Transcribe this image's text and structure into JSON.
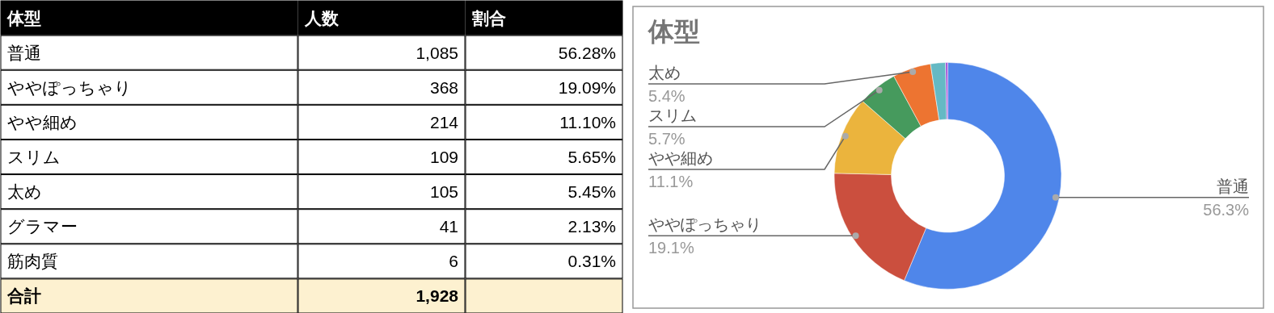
{
  "chart_data": [
    {
      "type": "other",
      "annotations": [
        "体型",
        "人数",
        "割合",
        "普通",
        "1,085",
        "56.28%",
        "ややぽっちゃり",
        "368",
        "19.09%",
        "やや細め",
        "214",
        "11.10%",
        "スリム",
        "109",
        "5.65%",
        "太め",
        "105",
        "5.45%",
        "グラマー",
        "41",
        "2.13%",
        "筋肉質",
        "6",
        "0.31%",
        "合計",
        "1,928"
      ]
    },
    {
      "type": "donut",
      "title": "体型",
      "categories": [
        "普通",
        "ややぽっちゃり",
        "やや細め",
        "スリム",
        "太め",
        null,
        null
      ],
      "values": [
        56.28,
        19.09,
        11.1,
        5.65,
        5.45,
        2.13,
        0.31
      ],
      "colors": [
        "#4f86ea",
        "#cb4f3e",
        "#ebb43d",
        "#469a5d",
        "#ed7431",
        "#65b9c4",
        "#a04bd6"
      ],
      "value_labels": [
        "56.3%",
        "19.1%",
        "11.1%",
        "5.7%",
        "5.4%",
        null,
        null
      ]
    }
  ]
}
